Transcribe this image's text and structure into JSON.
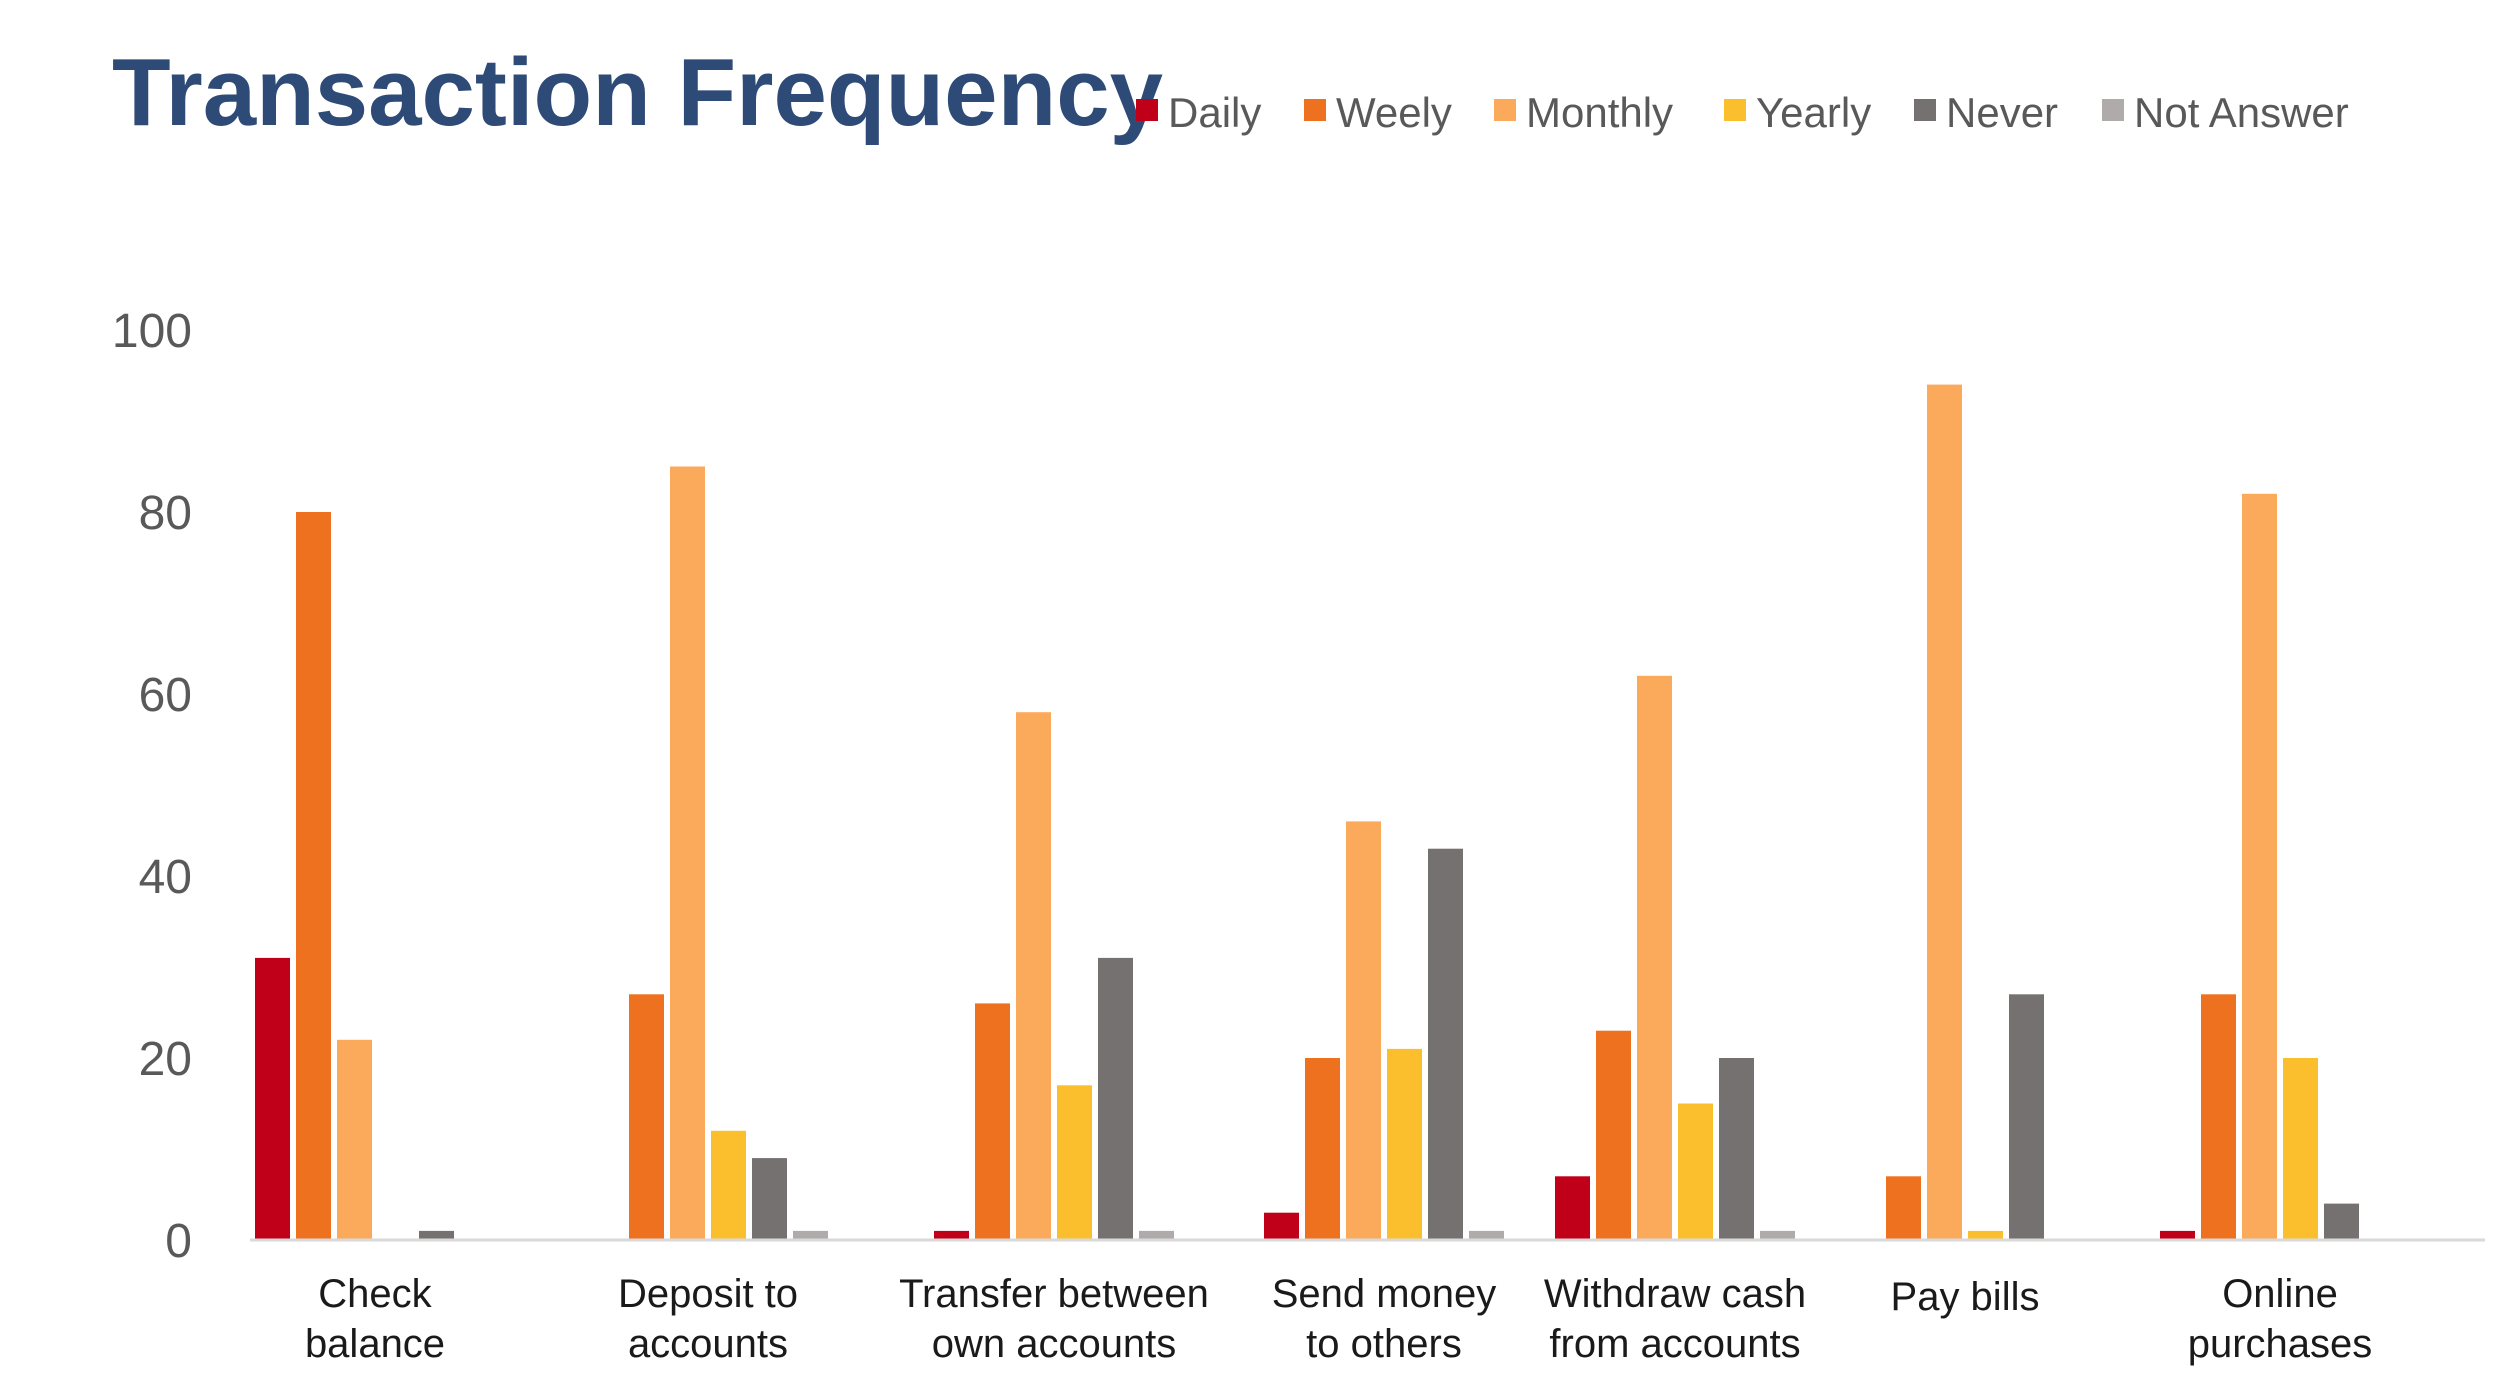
{
  "chart_data": {
    "type": "bar",
    "title": "Transaction Frequency",
    "xlabel": "",
    "ylabel": "",
    "ylim": [
      0,
      100
    ],
    "yticks": [
      0,
      20,
      40,
      60,
      80,
      100
    ],
    "yticks_labels": [
      "0",
      "20",
      "40",
      "60",
      "80",
      "100"
    ],
    "legend_position": "top-right",
    "grid": false,
    "categories": [
      [
        "Check",
        "balance"
      ],
      [
        "Deposit to",
        "accounts"
      ],
      [
        "Transfer between",
        "own accounts"
      ],
      [
        "Send money",
        "to others"
      ],
      [
        "Withdraw cash",
        "from accounts"
      ],
      [
        "Pay bills"
      ],
      [
        "Online",
        "purchases"
      ]
    ],
    "series": [
      {
        "name": "Daily",
        "color": "#c00018",
        "values": [
          31,
          0,
          1,
          3,
          7,
          0,
          1
        ]
      },
      {
        "name": "Weely",
        "color": "#ee7120",
        "values": [
          80,
          27,
          26,
          20,
          23,
          7,
          27
        ]
      },
      {
        "name": "Monthly",
        "color": "#fbaa5c",
        "values": [
          22,
          85,
          58,
          46,
          62,
          94,
          82
        ]
      },
      {
        "name": "Yearly",
        "color": "#fbbf2d",
        "values": [
          0,
          12,
          17,
          21,
          15,
          1,
          20
        ]
      },
      {
        "name": "Never",
        "color": "#767171",
        "values": [
          1,
          9,
          31,
          43,
          20,
          27,
          4
        ]
      },
      {
        "name": "Not Answer",
        "color": "#afabab",
        "values": [
          0,
          1,
          1,
          1,
          1,
          0,
          0
        ]
      }
    ]
  }
}
